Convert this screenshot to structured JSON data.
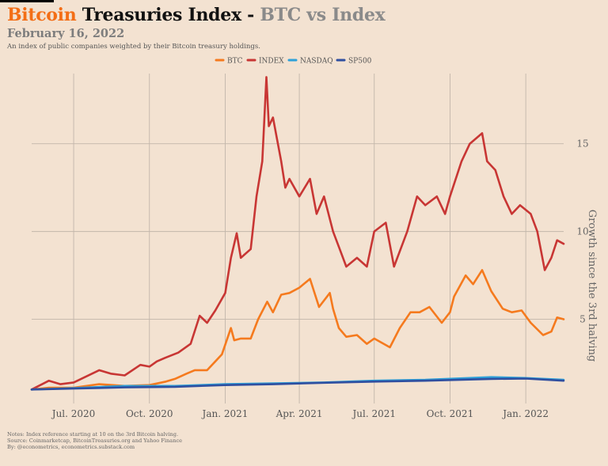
{
  "header": {
    "title_part1": "Bitcoin",
    "title_part2": " Treasuries Index - ",
    "title_part3": "BTC vs Index",
    "date": "February 16, 2022",
    "subtitle": "An index of public companies weighted by their Bitcoin treasury holdings."
  },
  "notes": [
    "Notes: Index reference starting at 10 on the 3rd Bitcoin halving.",
    "Source: Coinmarketcap, BitcoinTreasuries.org and Yahoo Finance",
    "By: @econometrics, econometrics.substack.com"
  ],
  "colors": {
    "background": "#f3e2d1",
    "grid": "#c2b6aa",
    "btc": "#f57a1e",
    "index": "#c83634",
    "nasdaq": "#2ea1d9",
    "sp500": "#2f4fa0"
  },
  "chart_data": {
    "type": "line",
    "ylabel": "Growth since the 3rd halving",
    "xlim": [
      "2020-05-11",
      "2022-02-16"
    ],
    "ylim": [
      0.2,
      19.0
    ],
    "y_axis_side": "right",
    "grid": true,
    "legend_position": "top-center",
    "x_ticks": [
      {
        "date": "2020-07-01",
        "label": "Jul. 2020"
      },
      {
        "date": "2020-10-01",
        "label": "Oct. 2020"
      },
      {
        "date": "2021-01-01",
        "label": "Jan. 2021"
      },
      {
        "date": "2021-04-01",
        "label": "Apr. 2021"
      },
      {
        "date": "2021-07-01",
        "label": "Jul. 2021"
      },
      {
        "date": "2021-10-01",
        "label": "Oct. 2021"
      },
      {
        "date": "2022-01-01",
        "label": "Jan. 2022"
      }
    ],
    "y_ticks": [
      5,
      10,
      15
    ],
    "series": [
      {
        "name": "BTC",
        "color": "#f57a1e",
        "points": [
          [
            "2020-05-11",
            1.0
          ],
          [
            "2020-06-01",
            1.1
          ],
          [
            "2020-07-01",
            1.1
          ],
          [
            "2020-08-01",
            1.3
          ],
          [
            "2020-09-01",
            1.2
          ],
          [
            "2020-10-01",
            1.25
          ],
          [
            "2020-10-21",
            1.45
          ],
          [
            "2020-11-01",
            1.6
          ],
          [
            "2020-11-15",
            1.9
          ],
          [
            "2020-11-25",
            2.1
          ],
          [
            "2020-12-10",
            2.1
          ],
          [
            "2020-12-20",
            2.6
          ],
          [
            "2020-12-28",
            3.0
          ],
          [
            "2021-01-08",
            4.5
          ],
          [
            "2021-01-12",
            3.8
          ],
          [
            "2021-01-20",
            3.9
          ],
          [
            "2021-02-01",
            3.9
          ],
          [
            "2021-02-10",
            5.0
          ],
          [
            "2021-02-21",
            6.0
          ],
          [
            "2021-02-28",
            5.4
          ],
          [
            "2021-03-10",
            6.4
          ],
          [
            "2021-03-20",
            6.5
          ],
          [
            "2021-04-01",
            6.8
          ],
          [
            "2021-04-14",
            7.3
          ],
          [
            "2021-04-25",
            5.7
          ],
          [
            "2021-05-08",
            6.5
          ],
          [
            "2021-05-12",
            5.6
          ],
          [
            "2021-05-19",
            4.5
          ],
          [
            "2021-05-28",
            4.0
          ],
          [
            "2021-06-10",
            4.1
          ],
          [
            "2021-06-22",
            3.6
          ],
          [
            "2021-07-01",
            3.9
          ],
          [
            "2021-07-20",
            3.4
          ],
          [
            "2021-08-01",
            4.5
          ],
          [
            "2021-08-14",
            5.4
          ],
          [
            "2021-08-25",
            5.4
          ],
          [
            "2021-09-06",
            5.7
          ],
          [
            "2021-09-21",
            4.8
          ],
          [
            "2021-10-01",
            5.4
          ],
          [
            "2021-10-06",
            6.3
          ],
          [
            "2021-10-20",
            7.5
          ],
          [
            "2021-10-29",
            7.0
          ],
          [
            "2021-11-09",
            7.8
          ],
          [
            "2021-11-20",
            6.6
          ],
          [
            "2021-12-04",
            5.6
          ],
          [
            "2021-12-15",
            5.4
          ],
          [
            "2021-12-27",
            5.5
          ],
          [
            "2022-01-07",
            4.8
          ],
          [
            "2022-01-22",
            4.1
          ],
          [
            "2022-02-01",
            4.3
          ],
          [
            "2022-02-08",
            5.1
          ],
          [
            "2022-02-16",
            5.0
          ]
        ]
      },
      {
        "name": "INDEX",
        "color": "#c83634",
        "points": [
          [
            "2020-05-11",
            1.0
          ],
          [
            "2020-06-01",
            1.5
          ],
          [
            "2020-06-15",
            1.3
          ],
          [
            "2020-07-01",
            1.4
          ],
          [
            "2020-08-01",
            2.1
          ],
          [
            "2020-08-15",
            1.9
          ],
          [
            "2020-09-01",
            1.8
          ],
          [
            "2020-09-20",
            2.4
          ],
          [
            "2020-10-01",
            2.3
          ],
          [
            "2020-10-10",
            2.6
          ],
          [
            "2020-10-20",
            2.8
          ],
          [
            "2020-11-05",
            3.1
          ],
          [
            "2020-11-20",
            3.6
          ],
          [
            "2020-12-01",
            5.2
          ],
          [
            "2020-12-10",
            4.8
          ],
          [
            "2020-12-20",
            5.5
          ],
          [
            "2021-01-01",
            6.5
          ],
          [
            "2021-01-08",
            8.5
          ],
          [
            "2021-01-15",
            9.9
          ],
          [
            "2021-01-20",
            8.5
          ],
          [
            "2021-02-01",
            9.0
          ],
          [
            "2021-02-08",
            12.0
          ],
          [
            "2021-02-15",
            14.0
          ],
          [
            "2021-02-20",
            18.8
          ],
          [
            "2021-02-23",
            16.0
          ],
          [
            "2021-02-28",
            16.5
          ],
          [
            "2021-03-10",
            14.0
          ],
          [
            "2021-03-15",
            12.5
          ],
          [
            "2021-03-20",
            13.0
          ],
          [
            "2021-04-01",
            12.0
          ],
          [
            "2021-04-14",
            13.0
          ],
          [
            "2021-04-22",
            11.0
          ],
          [
            "2021-05-01",
            12.0
          ],
          [
            "2021-05-12",
            10.0
          ],
          [
            "2021-05-20",
            9.0
          ],
          [
            "2021-05-28",
            8.0
          ],
          [
            "2021-06-10",
            8.5
          ],
          [
            "2021-06-22",
            8.0
          ],
          [
            "2021-07-01",
            10.0
          ],
          [
            "2021-07-15",
            10.5
          ],
          [
            "2021-07-25",
            8.0
          ],
          [
            "2021-08-10",
            10.0
          ],
          [
            "2021-08-22",
            12.0
          ],
          [
            "2021-09-01",
            11.5
          ],
          [
            "2021-09-15",
            12.0
          ],
          [
            "2021-09-25",
            11.0
          ],
          [
            "2021-10-01",
            12.0
          ],
          [
            "2021-10-15",
            14.0
          ],
          [
            "2021-10-25",
            15.0
          ],
          [
            "2021-11-09",
            15.6
          ],
          [
            "2021-11-15",
            14.0
          ],
          [
            "2021-11-25",
            13.5
          ],
          [
            "2021-12-05",
            12.0
          ],
          [
            "2021-12-15",
            11.0
          ],
          [
            "2021-12-25",
            11.5
          ],
          [
            "2022-01-07",
            11.0
          ],
          [
            "2022-01-15",
            10.0
          ],
          [
            "2022-01-24",
            7.8
          ],
          [
            "2022-02-01",
            8.5
          ],
          [
            "2022-02-08",
            9.5
          ],
          [
            "2022-02-16",
            9.3
          ]
        ]
      },
      {
        "name": "NASDAQ",
        "color": "#2ea1d9",
        "points": [
          [
            "2020-05-11",
            1.0
          ],
          [
            "2020-07-01",
            1.08
          ],
          [
            "2020-09-01",
            1.2
          ],
          [
            "2020-11-01",
            1.2
          ],
          [
            "2021-01-01",
            1.3
          ],
          [
            "2021-03-01",
            1.35
          ],
          [
            "2021-05-01",
            1.4
          ],
          [
            "2021-07-01",
            1.5
          ],
          [
            "2021-09-01",
            1.55
          ],
          [
            "2021-11-20",
            1.7
          ],
          [
            "2022-01-01",
            1.65
          ],
          [
            "2022-02-16",
            1.55
          ]
        ]
      },
      {
        "name": "SP500",
        "color": "#2f4fa0",
        "points": [
          [
            "2020-05-11",
            1.0
          ],
          [
            "2020-07-01",
            1.05
          ],
          [
            "2020-09-01",
            1.12
          ],
          [
            "2020-11-01",
            1.15
          ],
          [
            "2021-01-01",
            1.25
          ],
          [
            "2021-03-01",
            1.3
          ],
          [
            "2021-05-01",
            1.38
          ],
          [
            "2021-07-01",
            1.45
          ],
          [
            "2021-09-01",
            1.5
          ],
          [
            "2021-11-20",
            1.6
          ],
          [
            "2022-01-01",
            1.62
          ],
          [
            "2022-02-16",
            1.5
          ]
        ]
      }
    ]
  }
}
